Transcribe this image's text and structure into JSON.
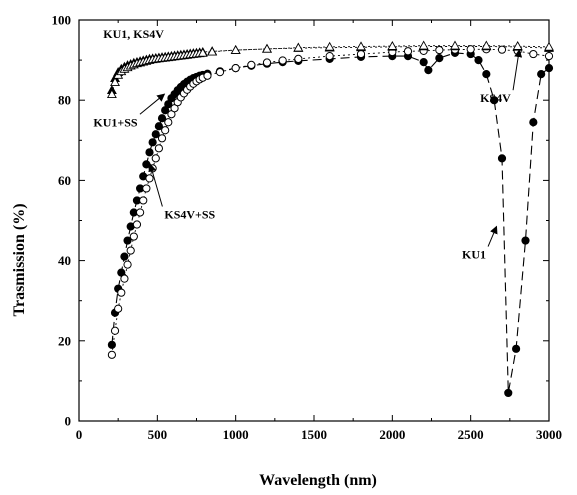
{
  "chart_data": {
    "type": "scatter",
    "xlabel": "Wavelength (nm)",
    "ylabel": "Trasmission (%)",
    "xlim": [
      0,
      3000
    ],
    "ylim": [
      0,
      100
    ],
    "xticks": [
      0,
      500,
      1000,
      1500,
      2000,
      2500,
      3000
    ],
    "yticks": [
      0,
      20,
      40,
      60,
      80,
      100
    ],
    "grid": false,
    "series": [
      {
        "name": "KU1",
        "marker": "filled-circle",
        "line": "long-dash",
        "x": [
          210,
          230,
          250,
          270,
          290,
          310,
          330,
          350,
          370,
          390,
          410,
          430,
          450,
          470,
          490,
          510,
          530,
          550,
          570,
          590,
          610,
          630,
          650,
          670,
          690,
          710,
          730,
          750,
          770,
          790,
          820,
          900,
          1000,
          1100,
          1200,
          1300,
          1400,
          1600,
          1800,
          2000,
          2100,
          2200,
          2230,
          2300,
          2400,
          2500,
          2550,
          2600,
          2650,
          2700,
          2740,
          2790,
          2850,
          2900,
          2950,
          3000
        ],
        "y": [
          19,
          27,
          33,
          37,
          41,
          45,
          48.5,
          52,
          55,
          58,
          61,
          64,
          67,
          69.5,
          71.5,
          73.5,
          75.5,
          77.5,
          79,
          80.5,
          81.5,
          82.5,
          83.3,
          84,
          84.6,
          85.1,
          85.5,
          85.8,
          86.1,
          86.3,
          86.6,
          87.2,
          88,
          88.6,
          89.1,
          89.5,
          89.8,
          90.3,
          90.8,
          91,
          91,
          89.5,
          87.5,
          90.5,
          91.8,
          91.5,
          90,
          86.5,
          80,
          65.5,
          7,
          18,
          45,
          74.5,
          86.5,
          88
        ]
      },
      {
        "name": "KS4V+SS",
        "marker": "open-circle",
        "line": "dotted",
        "x": [
          210,
          230,
          250,
          270,
          290,
          310,
          330,
          350,
          370,
          390,
          410,
          430,
          450,
          470,
          490,
          510,
          530,
          550,
          570,
          590,
          610,
          630,
          650,
          670,
          690,
          710,
          730,
          750,
          770,
          790,
          820,
          900,
          1000,
          1100,
          1200,
          1300,
          1400,
          1600,
          1800,
          2000,
          2100,
          2200,
          2300,
          2400,
          2500,
          2600,
          2700,
          2800,
          2900,
          3000
        ],
        "y": [
          16.5,
          22.5,
          28,
          32,
          35.5,
          39,
          42.5,
          46,
          49,
          52,
          55,
          58,
          60.5,
          63,
          65.5,
          68,
          70.5,
          72.5,
          74.5,
          76.5,
          78,
          79.5,
          80.7,
          81.7,
          82.6,
          83.4,
          84.1,
          84.7,
          85.2,
          85.6,
          86.1,
          87,
          88,
          88.8,
          89.4,
          89.9,
          90.3,
          91,
          91.5,
          92,
          92.2,
          92.3,
          92.5,
          92.6,
          92.7,
          92.7,
          92.6,
          92.3,
          91.5,
          91
        ]
      },
      {
        "name": "KU1, KS4V",
        "marker": "filled-triangle",
        "line": "dotted",
        "x": [
          210,
          230,
          250,
          270,
          290,
          310,
          330,
          350,
          370,
          390,
          410,
          430,
          450,
          470,
          490,
          510,
          530,
          550,
          570,
          590,
          610,
          630,
          650,
          670,
          690,
          710,
          730,
          750,
          770,
          790,
          850,
          1000,
          1200,
          1400,
          1600,
          1800,
          2000,
          2200,
          2400,
          2600,
          2800,
          3000
        ],
        "y": [
          82.5,
          85.5,
          87,
          87.8,
          88.3,
          88.7,
          89,
          89.3,
          89.5,
          89.7,
          89.9,
          90.1,
          90.3,
          90.4,
          90.5,
          90.6,
          90.7,
          90.8,
          90.9,
          91,
          91.1,
          91.2,
          91.3,
          91.4,
          91.5,
          91.6,
          91.7,
          91.8,
          91.9,
          92,
          92.2,
          92.5,
          92.8,
          93,
          93.1,
          93.2,
          93.3,
          93.4,
          93.4,
          93.4,
          93.3,
          93
        ]
      },
      {
        "name": "KS4V",
        "marker": "open-triangle",
        "line": "dotted",
        "x": [
          210,
          230,
          250,
          270,
          290,
          310,
          330,
          350,
          370,
          390,
          410,
          430,
          450,
          470,
          490,
          510,
          530,
          550,
          570,
          590,
          610,
          630,
          650,
          670,
          690,
          710,
          730,
          750,
          770,
          790,
          850,
          1000,
          1200,
          1400,
          1600,
          1800,
          2000,
          2200,
          2400,
          2600,
          2800,
          3000
        ],
        "y": [
          81.5,
          84.5,
          86.3,
          87.2,
          87.8,
          88.2,
          88.6,
          88.9,
          89.2,
          89.4,
          89.6,
          89.8,
          90,
          90.2,
          90.3,
          90.4,
          90.5,
          90.6,
          90.7,
          90.8,
          90.9,
          91,
          91.1,
          91.2,
          91.3,
          91.4,
          91.5,
          91.6,
          91.7,
          91.8,
          92.1,
          92.5,
          92.8,
          93.1,
          93.3,
          93.4,
          93.5,
          93.6,
          93.6,
          93.6,
          93.5,
          93.3
        ]
      }
    ],
    "annotations": [
      {
        "text": "KU1, KS4V",
        "x": 155,
        "y": 95.5
      },
      {
        "text": "KU1+SS",
        "x": 92,
        "y": 73.5,
        "arrow_to": [
          545,
          81.5
        ]
      },
      {
        "text": "KS4V+SS",
        "x": 545,
        "y": 50.5,
        "arrow_to": [
          455,
          64
        ]
      },
      {
        "text": "KS4V",
        "x": 2560,
        "y": 79.5,
        "arrow_to": [
          2810,
          92.5
        ]
      },
      {
        "text": "KU1",
        "x": 2445,
        "y": 40.5,
        "arrow_to": [
          2665,
          48.5
        ]
      }
    ]
  }
}
